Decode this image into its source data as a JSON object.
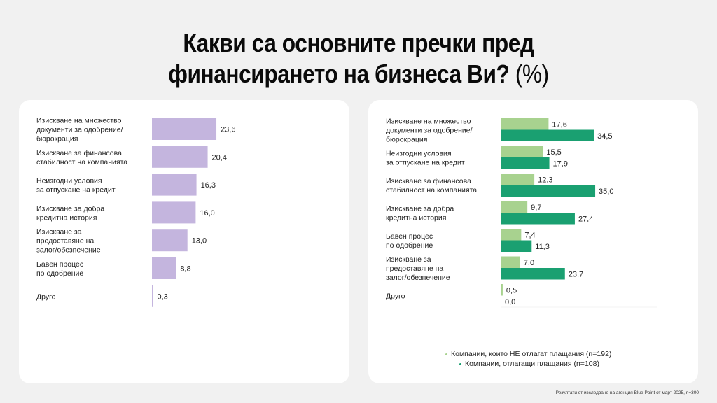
{
  "title": {
    "line1": "Какви са основните пречки пред",
    "line2": "финансирането на бизнеса Ви?",
    "unit": "(%)"
  },
  "colors": {
    "left_bar": "#c4b5de",
    "light_green": "#a8d28f",
    "dark_green": "#1aa071"
  },
  "chart_data": [
    {
      "type": "bar",
      "orientation": "horizontal",
      "title": "Какви са основните пречки пред финансирането на бизнеса Ви? (%)",
      "categories": [
        [
          "Изискване на множество",
          "документи за одобрение/",
          "бюрокрация"
        ],
        [
          "Изискване за финансова",
          "стабилност на компанията"
        ],
        [
          "Неизгодни условия",
          "за отпускане на кредит"
        ],
        [
          "Изискване за добра",
          "кредитна история"
        ],
        [
          "Изискване за",
          "предоставяне на",
          "залог/обезпечение"
        ],
        [
          "Бавен процес",
          "по одобрение"
        ],
        [
          "Друго"
        ]
      ],
      "values": [
        23.6,
        20.4,
        16.3,
        16.0,
        13.0,
        8.8,
        0.3
      ],
      "value_labels": [
        "23,6",
        "20,4",
        "16,3",
        "16,0",
        "13,0",
        "8,8",
        "0,3"
      ],
      "xlim": [
        0,
        40
      ],
      "grid": false
    },
    {
      "type": "bar",
      "orientation": "horizontal",
      "categories": [
        [
          "Изискване на множество",
          "документи за одобрение/",
          "бюрокрация"
        ],
        [
          "Неизгодни условия",
          "за отпускане на кредит"
        ],
        [
          "Изискване за финансова",
          "стабилност на компанията"
        ],
        [
          "Изискване за добра",
          "кредитна история"
        ],
        [
          "Бавен процес",
          "по одобрение"
        ],
        [
          "Изискване за",
          "предоставяне на",
          "залог/обезпечение"
        ],
        [
          "Друго"
        ]
      ],
      "series": [
        {
          "name": "Компании, които НЕ отлагат плащания (n=192)",
          "values": [
            17.6,
            15.5,
            12.3,
            9.7,
            7.4,
            7.0,
            0.5
          ],
          "value_labels": [
            "17,6",
            "15,5",
            "12,3",
            "9,7",
            "7,4",
            "7,0",
            "0,5"
          ]
        },
        {
          "name": "Компании, отлагащи плащания (n=108)",
          "values": [
            34.5,
            17.9,
            35.0,
            27.4,
            11.3,
            23.7,
            0.0
          ],
          "value_labels": [
            "34,5",
            "17,9",
            "35,0",
            "27,4",
            "11,3",
            "23,7",
            "0,0"
          ]
        }
      ],
      "xlim": [
        0,
        40
      ],
      "legend": "bottom-right",
      "grid": false
    }
  ],
  "footer": "Резултати от изследване на агенция Blue Point от март 2025, n=300"
}
